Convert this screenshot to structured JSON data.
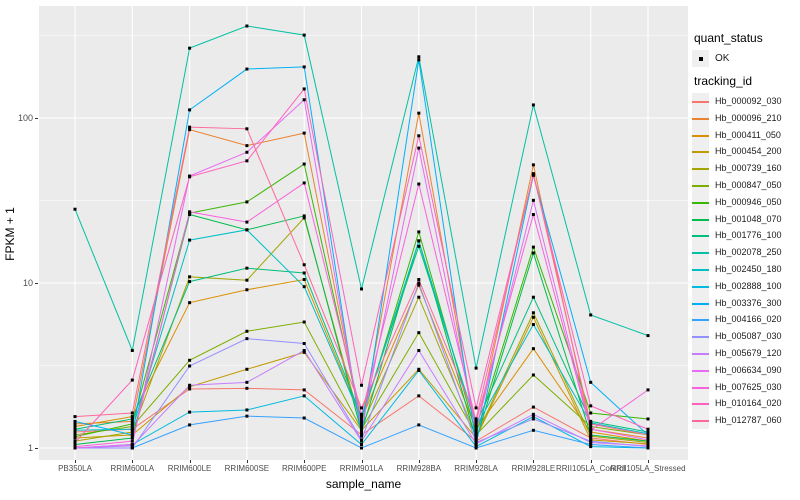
{
  "axes": {
    "x_title": "sample_name",
    "y_title": "FPKM + 1"
  },
  "legend": {
    "quant_status_title": "quant_status",
    "quant_status_value": "OK",
    "tracking_id_title": "tracking_id"
  },
  "theme": {
    "panel_bg": "#EBEBEB",
    "grid_color": "#FFFFFF",
    "point_color": "#000000",
    "axis_text_color": "#4D4D4D",
    "text_color": "#000000"
  },
  "chart_data": {
    "type": "line",
    "title": "",
    "xlabel": "sample_name",
    "ylabel": "FPKM + 1",
    "y_scale": "log10",
    "ylim": [
      1,
      464
    ],
    "yticks": [
      1,
      10,
      100
    ],
    "yticks_minor": [
      3.162,
      31.62,
      316.2
    ],
    "grid": true,
    "legend_position": "right",
    "point_marker": "filled-square",
    "quant_status": "OK",
    "categories": [
      "PB350LA",
      "RRIM600LA",
      "RRIM600LE",
      "RRIM600SE",
      "RRIM600PE",
      "RRIM901LA",
      "RRIM928BA",
      "RRIM928LA",
      "RRIM928LE",
      "RRII105LA_Control",
      "RRII105LA_Stressed"
    ],
    "series": [
      {
        "name": "Hb_000092_030",
        "color": "#F8766D",
        "values": [
          1.25,
          1.3,
          2.28,
          2.3,
          2.25,
          1.2,
          2.07,
          1.1,
          1.77,
          1.15,
          1.05
        ]
      },
      {
        "name": "Hb_000096_210",
        "color": "#EA8331",
        "values": [
          1.4,
          1.45,
          85,
          68,
          81,
          1.4,
          107,
          1.25,
          52,
          1.3,
          1.15
        ]
      },
      {
        "name": "Hb_000411_050",
        "color": "#D89000",
        "values": [
          1.35,
          1.55,
          7.6,
          9.1,
          10.5,
          1.5,
          9.7,
          1.3,
          4.0,
          1.25,
          1.1
        ]
      },
      {
        "name": "Hb_000454_200",
        "color": "#C09B00",
        "values": [
          1.15,
          1.2,
          2.35,
          3.0,
          3.8,
          1.28,
          3.0,
          1.15,
          6.2,
          1.12,
          1.06
        ]
      },
      {
        "name": "Hb_000739_160",
        "color": "#A3A500",
        "values": [
          1.1,
          1.25,
          10.9,
          10.4,
          24.8,
          1.35,
          8.2,
          1.18,
          6.6,
          1.18,
          1.08
        ]
      },
      {
        "name": "Hb_000847_050",
        "color": "#7CAE00",
        "values": [
          1.2,
          1.35,
          3.4,
          5.1,
          5.8,
          1.3,
          5.0,
          1.2,
          2.77,
          1.35,
          1.2
        ]
      },
      {
        "name": "Hb_000946_050",
        "color": "#39B600",
        "values": [
          1.17,
          1.4,
          26.5,
          31,
          52.6,
          1.45,
          20.4,
          1.22,
          16.5,
          1.63,
          1.5
        ]
      },
      {
        "name": "Hb_001048_070",
        "color": "#00BB4E",
        "values": [
          1.05,
          1.15,
          26,
          21,
          25.5,
          1.25,
          18,
          1.12,
          15.2,
          1.2,
          1.1
        ]
      },
      {
        "name": "Hb_001776_100",
        "color": "#00BF7D",
        "values": [
          1.3,
          1.5,
          10.2,
          12.3,
          11.5,
          1.55,
          16.7,
          1.4,
          8.2,
          1.45,
          1.25
        ]
      },
      {
        "name": "Hb_002078_250",
        "color": "#00C1A3",
        "values": [
          28,
          3.9,
          265,
          361,
          318,
          9.2,
          235,
          3.05,
          120,
          6.4,
          4.8
        ]
      },
      {
        "name": "Hb_002450_180",
        "color": "#00BFC4",
        "values": [
          1.28,
          1.3,
          18.2,
          21,
          9.5,
          1.5,
          18,
          1.35,
          5.6,
          1.42,
          1.22
        ]
      },
      {
        "name": "Hb_002888_100",
        "color": "#00BAE0",
        "values": [
          1.0,
          1.05,
          1.65,
          1.7,
          2.07,
          1.05,
          2.95,
          1.02,
          1.55,
          1.02,
          1.0
        ]
      },
      {
        "name": "Hb_003376_300",
        "color": "#00B0F6",
        "values": [
          1.45,
          1.2,
          112,
          198,
          204,
          1.18,
          225,
          1.05,
          45,
          2.5,
          1.2
        ]
      },
      {
        "name": "Hb_004166_020",
        "color": "#35A2FF",
        "values": [
          1.0,
          1.0,
          1.38,
          1.56,
          1.52,
          1.0,
          1.38,
          1.0,
          1.28,
          1.05,
          1.0
        ]
      },
      {
        "name": "Hb_005087_030",
        "color": "#9590FF",
        "values": [
          1.0,
          1.0,
          3.14,
          4.6,
          4.3,
          1.12,
          10,
          1.08,
          1.5,
          1.1,
          1.02
        ]
      },
      {
        "name": "Hb_005679_120",
        "color": "#C77CFF",
        "values": [
          1.0,
          1.03,
          2.4,
          2.5,
          3.9,
          1.1,
          3.9,
          1.06,
          1.6,
          1.08,
          1.03
        ]
      },
      {
        "name": "Hb_006634_090",
        "color": "#E76BF3",
        "values": [
          1.0,
          1.05,
          44.5,
          62,
          129,
          1.3,
          65.7,
          1.28,
          31.7,
          1.3,
          1.12
        ]
      },
      {
        "name": "Hb_007625_030",
        "color": "#FA62DB",
        "values": [
          1.02,
          1.1,
          27,
          23.4,
          40.4,
          1.6,
          39.8,
          1.45,
          26,
          1.28,
          2.25
        ]
      },
      {
        "name": "Hb_010164_020",
        "color": "#FF62BC",
        "values": [
          1.08,
          2.58,
          44,
          55,
          150,
          2.4,
          78,
          1.75,
          45,
          1.8,
          1.3
        ]
      },
      {
        "name": "Hb_012787_060",
        "color": "#FF6A98",
        "values": [
          1.55,
          1.63,
          88,
          86,
          12.9,
          1.75,
          10.5,
          1.5,
          46,
          1.4,
          1.2
        ]
      }
    ]
  }
}
